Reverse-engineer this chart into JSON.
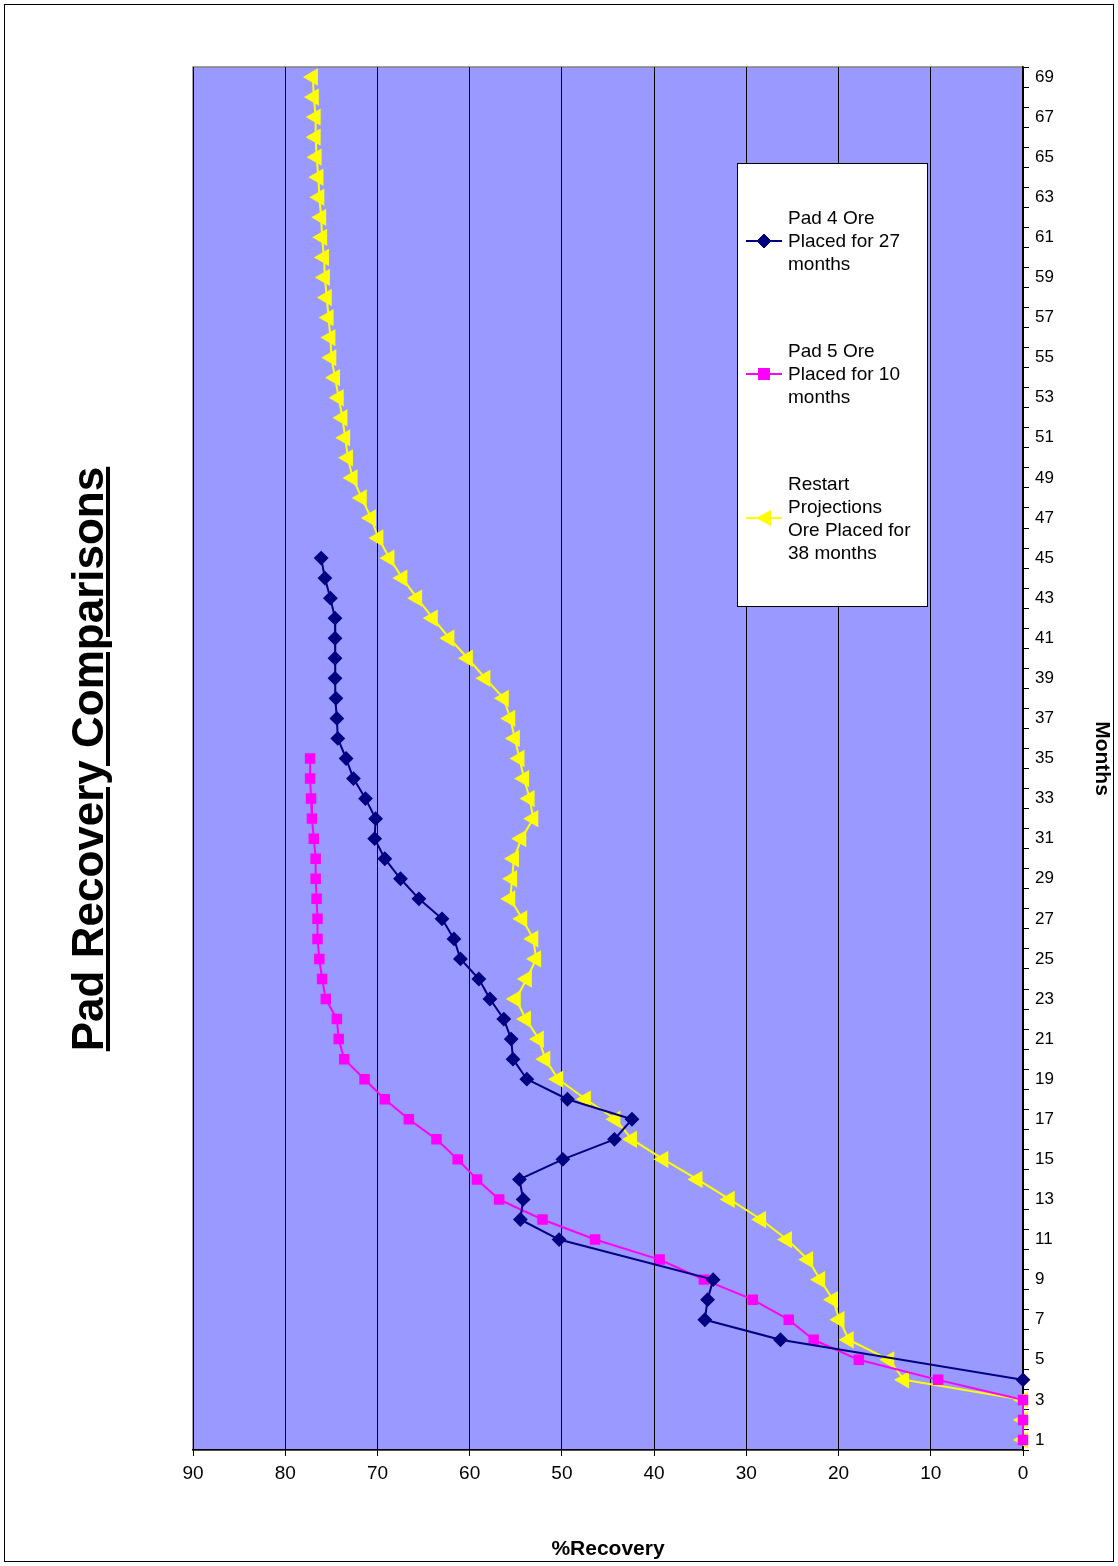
{
  "chart_data": {
    "type": "line",
    "title": "Pad Recovery Comparisons",
    "xlabel": "%Recovery",
    "ylabel": "Months",
    "orientation": "horizontal",
    "categories": [
      "69",
      null,
      "67",
      null,
      "65",
      null,
      "63",
      null,
      "61",
      null,
      "59",
      null,
      "57",
      null,
      "55",
      null,
      "53",
      null,
      "51",
      null,
      "49",
      null,
      "47",
      null,
      "45",
      null,
      "43",
      null,
      "41",
      null,
      "39",
      null,
      "37",
      null,
      "35",
      null,
      "33",
      null,
      "31",
      null,
      "29",
      null,
      "27",
      null,
      "25",
      null,
      "23",
      null,
      "21",
      null,
      "19",
      null,
      "17",
      null,
      "15",
      null,
      "13",
      null,
      "11",
      null,
      "9",
      null,
      "7",
      null,
      "5",
      null,
      "3",
      null,
      "1"
    ],
    "series": [
      {
        "name": "Pad 4 Ore Placed for 27 months",
        "color": "#000080",
        "marker": "diamond",
        "values": [
          null,
          null,
          null,
          null,
          null,
          null,
          null,
          null,
          null,
          null,
          null,
          null,
          null,
          null,
          null,
          null,
          null,
          null,
          null,
          null,
          null,
          null,
          null,
          null,
          76.1,
          75.7,
          75.1,
          74.6,
          74.6,
          74.6,
          74.6,
          74.5,
          74.4,
          74.3,
          73.4,
          72.6,
          71.3,
          70.2,
          70.3,
          69.2,
          67.5,
          65.5,
          63.0,
          61.7,
          61.0,
          59.0,
          57.8,
          56.3,
          55.5,
          55.3,
          53.8,
          49.4,
          42.4,
          44.3,
          49.9,
          54.6,
          54.2,
          54.5,
          50.3,
          null,
          33.6,
          34.2,
          34.5,
          26.3,
          null,
          0,
          null,
          null,
          null
        ]
      },
      {
        "name": "Pad 5 Ore Placed for 10 months",
        "color": "#ff00ff",
        "marker": "square",
        "values": [
          null,
          null,
          null,
          null,
          null,
          null,
          null,
          null,
          null,
          null,
          null,
          null,
          null,
          null,
          null,
          null,
          null,
          null,
          null,
          null,
          null,
          null,
          null,
          null,
          null,
          null,
          null,
          null,
          null,
          null,
          null,
          null,
          null,
          null,
          77.3,
          77.3,
          77.2,
          77.1,
          76.9,
          76.7,
          76.7,
          76.6,
          76.5,
          76.5,
          76.3,
          76.0,
          75.6,
          74.4,
          74.2,
          73.6,
          71.4,
          69.2,
          66.6,
          63.6,
          61.3,
          59.2,
          56.8,
          52.1,
          46.4,
          39.4,
          34.6,
          29.3,
          25.4,
          22.7,
          17.8,
          9.2,
          0,
          0,
          0
        ]
      },
      {
        "name": "Restart Projections Ore Placed for 38 months",
        "color": "#ffff00",
        "marker": "triangle",
        "values": [
          77.0,
          76.9,
          76.7,
          76.7,
          76.6,
          76.4,
          76.3,
          76.1,
          76.0,
          75.8,
          75.7,
          75.5,
          75.3,
          75.1,
          75.0,
          74.6,
          74.2,
          73.8,
          73.5,
          73.2,
          72.7,
          71.7,
          70.7,
          69.9,
          68.7,
          67.3,
          65.7,
          64.0,
          62.2,
          60.2,
          58.3,
          56.3,
          55.6,
          55.1,
          54.6,
          54.1,
          53.5,
          53.1,
          54.4,
          55.2,
          55.4,
          55.6,
          54.3,
          53.1,
          52.8,
          53.8,
          55.0,
          53.9,
          52.5,
          51.8,
          50.4,
          47.4,
          44.2,
          42.4,
          39.0,
          35.3,
          31.8,
          28.4,
          25.6,
          23.3,
          22.0,
          20.6,
          19.9,
          18.9,
          14.5,
          12.9,
          0,
          0,
          0
        ]
      }
    ],
    "xlim": [
      90,
      0
    ],
    "xticks": [
      90,
      80,
      70,
      60,
      50,
      40,
      30,
      20,
      10,
      0
    ],
    "grid": "x",
    "legend": "top right",
    "line_style": "solid"
  }
}
